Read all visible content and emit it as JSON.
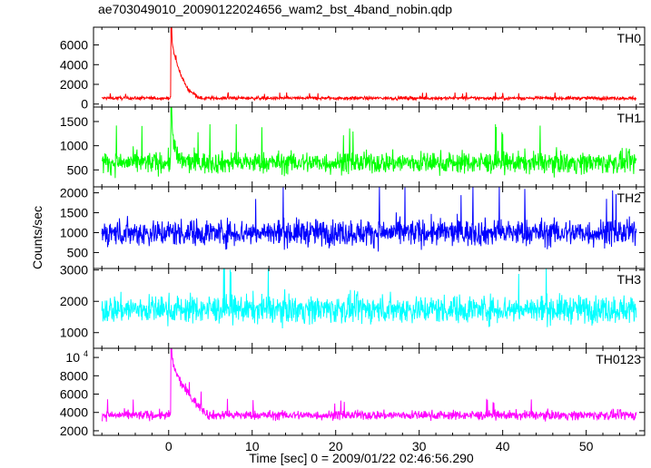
{
  "chart_data": {
    "type": "line",
    "title": "ae703049010_20090122024656_wam2_bst_4band_nobin.qdp",
    "xlabel": "Time [sec] 0 = 2009/01/22 02:46:56.290",
    "ylabel": "Counts/sec",
    "xlim": [
      -9,
      57
    ],
    "x_ticks": [
      0,
      10,
      20,
      30,
      40,
      50
    ],
    "x_tick_labels": [
      "0",
      "10",
      "20",
      "30",
      "40",
      "50"
    ],
    "data_start": -8,
    "data_end": 56,
    "panels": [
      {
        "name": "TH0",
        "color": "#ff0000",
        "ylim": [
          -300,
          7800
        ],
        "y_ticks": [
          0,
          2000,
          4000,
          6000
        ],
        "y_tick_labels": [
          "0",
          "2000",
          "4000",
          "6000"
        ],
        "baseline_mean": 600,
        "baseline_spread": 300,
        "peak_time": 0.3,
        "peak_value": 7800,
        "decay_to": 1500,
        "decay_end": 2.0
      },
      {
        "name": "TH1",
        "color": "#00ff00",
        "ylim": [
          150,
          1800
        ],
        "y_ticks": [
          500,
          1000,
          1500
        ],
        "y_tick_labels": [
          "500",
          "1000",
          "1500"
        ],
        "baseline_mean": 650,
        "baseline_spread": 400,
        "peak_time": 0.3,
        "peak_value": 1800,
        "decay_to": 700,
        "decay_end": 0.8
      },
      {
        "name": "TH2",
        "color": "#0000ff",
        "ylim": [
          100,
          2150
        ],
        "y_ticks": [
          500,
          1000,
          1500,
          2000
        ],
        "y_tick_labels": [
          "500",
          "1000",
          "1500",
          "2000"
        ],
        "baseline_mean": 1000,
        "baseline_spread": 600,
        "peak_time": null,
        "peak_value": null,
        "decay_to": null,
        "decay_end": null
      },
      {
        "name": "TH3",
        "color": "#00ffff",
        "ylim": [
          500,
          3050
        ],
        "y_ticks": [
          1000,
          2000,
          3000
        ],
        "y_tick_labels": [
          "1000",
          "2000",
          "3000"
        ],
        "baseline_mean": 1750,
        "baseline_spread": 800,
        "peak_time": null,
        "peak_value": null,
        "decay_to": null,
        "decay_end": null
      },
      {
        "name": "TH0123",
        "color": "#ff00ff",
        "ylim": [
          1500,
          11000
        ],
        "y_ticks": [
          2000,
          4000,
          6000,
          8000
        ],
        "y_tick_labels": [
          "2000",
          "4000",
          "6000",
          "8000"
        ],
        "y_top_label": "10",
        "y_top_label_exp": "4",
        "y_top_value": 10000,
        "baseline_mean": 3700,
        "baseline_spread": 900,
        "peak_time": 0.3,
        "peak_value": 11000,
        "decay_to": 5000,
        "decay_end": 3.0
      }
    ]
  }
}
